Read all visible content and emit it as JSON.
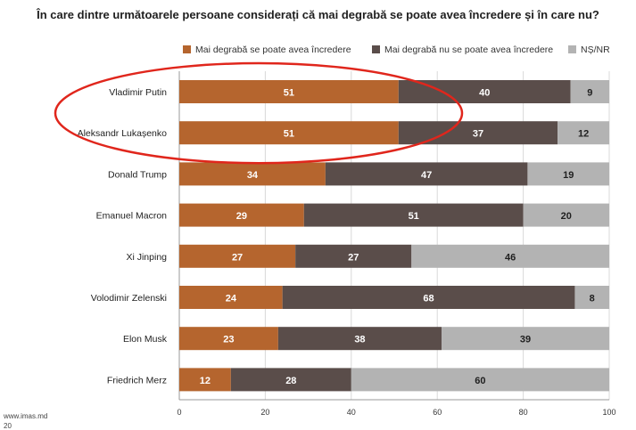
{
  "chart_data": {
    "type": "bar",
    "stacked": true,
    "orientation": "horizontal",
    "title": "În care dintre următoarele persoane considerați că mai degrabă se poate avea încredere și în care nu?",
    "categories": [
      "Vladimir Putin",
      "Aleksandr Lukașenko",
      "Donald Trump",
      "Emanuel Macron",
      "Xi Jinping",
      "Volodimir Zelenski",
      "Elon Musk",
      "Friedrich Merz"
    ],
    "series": [
      {
        "name": "Mai degrabă se poate avea încredere",
        "color": "#b5652e",
        "values": [
          51,
          51,
          34,
          29,
          27,
          24,
          23,
          12
        ]
      },
      {
        "name": "Mai degrabă nu se poate avea încredere",
        "color": "#5a4d4a",
        "values": [
          40,
          37,
          47,
          51,
          27,
          68,
          38,
          28
        ]
      },
      {
        "name": "NȘ/NR",
        "color": "#b3b3b3",
        "values": [
          9,
          12,
          19,
          20,
          46,
          8,
          39,
          60
        ]
      }
    ],
    "xlim": [
      0,
      100
    ],
    "xticks": [
      "0",
      "20",
      "40",
      "60",
      "80",
      "100"
    ],
    "grid": true,
    "legend_position": "top",
    "highlight_ring": {
      "color": "#e0261c",
      "categories": [
        "Vladimir Putin",
        "Aleksandr Lukașenko"
      ]
    }
  },
  "footer": {
    "source": "www.imas.md",
    "page": "20"
  }
}
